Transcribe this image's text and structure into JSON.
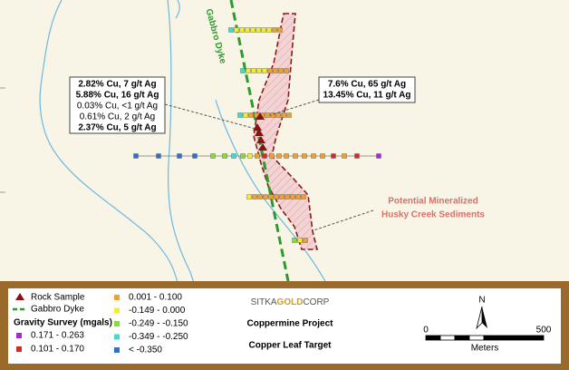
{
  "map": {
    "dyke_label": "Gabbro Dyke",
    "callout_left": [
      {
        "text": "2.82% Cu, 7 g/t Ag",
        "bold": true
      },
      {
        "text": "5.88% Cu, 16 g/t Ag",
        "bold": true
      },
      {
        "text": "0.03% Cu, <1 g/t Ag",
        "bold": false
      },
      {
        "text": "0.61% Cu, 2 g/t Ag",
        "bold": false
      },
      {
        "text": "2.37% Cu, 5 g/t Ag",
        "bold": true
      }
    ],
    "callout_right": [
      {
        "text": "7.6% Cu, 65 g/t Ag",
        "bold": true
      },
      {
        "text": "13.45% Cu, 11 g/t Ag",
        "bold": true
      }
    ],
    "annotation": [
      "Potential Mineralized",
      "Husky Creek Sediments"
    ]
  },
  "legend": {
    "rock_sample": "Rock Sample",
    "dyke": "Gabbro Dyke",
    "gravity_title": "Gravity Survey (mgals)",
    "gravity": [
      {
        "label": "0.171 - 0.263",
        "color": "#a22ad8"
      },
      {
        "label": "0.101 - 0.170",
        "color": "#d42a2a"
      },
      {
        "label": "0.001 - 0.100",
        "color": "#f0a030"
      },
      {
        "label": "-0.149 - 0.000",
        "color": "#f2ee2c"
      },
      {
        "label": "-0.249 - -0.150",
        "color": "#86dc3c"
      },
      {
        "label": "-0.349 - -0.250",
        "color": "#3edcd0"
      },
      {
        "label": "< -0.350",
        "color": "#2f6fd0"
      }
    ]
  },
  "title_block": {
    "logo": [
      "SITKA",
      "GOLD",
      "CORP"
    ],
    "project": "Coppermine Project",
    "target": "Copper Leaf Target"
  },
  "scale": {
    "north": "N",
    "start": "0",
    "end": "500",
    "unit": "Meters"
  }
}
